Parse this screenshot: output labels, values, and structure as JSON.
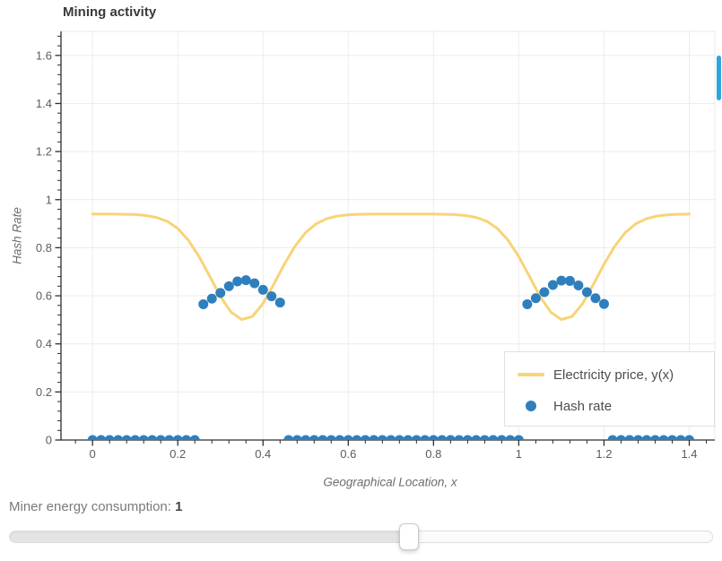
{
  "controls": {
    "slider_label": "Miner energy consumption: ",
    "slider_value": "1",
    "slider_percent": 56.7
  },
  "scrollbar": {
    "color": "#2AA7DF"
  },
  "chart_data": {
    "type": "line+scatter",
    "title": "Mining activity",
    "xlabel": "Geographical Location, x",
    "ylabel": "Hash Rate",
    "x_range": [
      -0.074,
      1.46
    ],
    "y_range": [
      0,
      1.7
    ],
    "grid": true,
    "x_ticks": {
      "values": [
        0,
        0.2,
        0.4,
        0.6,
        0.8,
        1,
        1.2,
        1.4
      ],
      "labels": [
        "0",
        "0.2",
        "0.4",
        "0.6",
        "0.8",
        "1",
        "1.2",
        "1.4"
      ],
      "minor_step": 0.04
    },
    "y_ticks": {
      "values": [
        0,
        0.2,
        0.4,
        0.6,
        0.8,
        1,
        1.2,
        1.4,
        1.6
      ],
      "labels": [
        "0",
        "0.2",
        "0.4",
        "0.6",
        "0.8",
        "1",
        "1.2",
        "1.4",
        "1.6"
      ],
      "minor_step": 0.04
    },
    "legend": {
      "position": "bottom-right",
      "entries": [
        {
          "label": "Electricity price, y(x)",
          "type": "line",
          "color": "#F8D377"
        },
        {
          "label": "Hash rate",
          "type": "circle",
          "color": "#2F7FBD"
        }
      ]
    },
    "series": [
      {
        "name": "Electricity price, y(x)",
        "type": "line",
        "color": "#F8D377",
        "width": 3,
        "x": [
          0,
          0.025,
          0.05,
          0.075,
          0.1,
          0.125,
          0.15,
          0.175,
          0.2,
          0.225,
          0.25,
          0.275,
          0.3,
          0.325,
          0.35,
          0.375,
          0.4,
          0.425,
          0.45,
          0.475,
          0.5,
          0.525,
          0.55,
          0.575,
          0.6,
          0.625,
          0.65,
          0.675,
          0.7,
          0.725,
          0.75,
          0.775,
          0.8,
          0.825,
          0.85,
          0.875,
          0.9,
          0.925,
          0.95,
          0.975,
          1.0,
          1.025,
          1.05,
          1.075,
          1.1,
          1.125,
          1.15,
          1.175,
          1.2,
          1.225,
          1.25,
          1.275,
          1.3,
          1.325,
          1.35,
          1.375,
          1.4
        ],
        "y": [
          0.94,
          0.94,
          0.94,
          0.939,
          0.938,
          0.934,
          0.926,
          0.91,
          0.88,
          0.831,
          0.763,
          0.681,
          0.597,
          0.532,
          0.501,
          0.514,
          0.568,
          0.647,
          0.731,
          0.806,
          0.863,
          0.9,
          0.921,
          0.932,
          0.937,
          0.939,
          0.94,
          0.94,
          0.94,
          0.94,
          0.94,
          0.94,
          0.94,
          0.939,
          0.938,
          0.934,
          0.926,
          0.91,
          0.88,
          0.831,
          0.763,
          0.681,
          0.597,
          0.532,
          0.501,
          0.514,
          0.568,
          0.647,
          0.731,
          0.806,
          0.863,
          0.9,
          0.921,
          0.932,
          0.937,
          0.939,
          0.94
        ]
      },
      {
        "name": "Hash rate",
        "type": "scatter",
        "color": "#2F7FBD",
        "size": 11,
        "x": [
          0,
          0.02,
          0.04,
          0.06,
          0.08,
          0.1,
          0.12,
          0.14,
          0.16,
          0.18,
          0.2,
          0.22,
          0.24,
          0.26,
          0.28,
          0.3,
          0.32,
          0.34,
          0.36,
          0.38,
          0.4,
          0.42,
          0.44,
          0.46,
          0.48,
          0.5,
          0.52,
          0.54,
          0.56,
          0.58,
          0.6,
          0.62,
          0.64,
          0.66,
          0.68,
          0.7,
          0.72,
          0.74,
          0.76,
          0.78,
          0.8,
          0.82,
          0.84,
          0.86,
          0.88,
          0.9,
          0.92,
          0.94,
          0.96,
          0.98,
          1.0,
          1.02,
          1.04,
          1.06,
          1.08,
          1.1,
          1.12,
          1.14,
          1.16,
          1.18,
          1.2,
          1.22,
          1.24,
          1.26,
          1.28,
          1.3,
          1.32,
          1.34,
          1.36,
          1.38,
          1.4
        ],
        "y": [
          0,
          0,
          0,
          0,
          0,
          0,
          0,
          0,
          0,
          0,
          0,
          0,
          0,
          0.565,
          0.588,
          0.612,
          0.64,
          0.66,
          0.665,
          0.652,
          0.625,
          0.598,
          0.572,
          0,
          0,
          0,
          0,
          0,
          0,
          0,
          0,
          0,
          0,
          0,
          0,
          0,
          0,
          0,
          0,
          0,
          0,
          0,
          0,
          0,
          0,
          0,
          0,
          0,
          0,
          0,
          0,
          0.565,
          0.59,
          0.615,
          0.645,
          0.663,
          0.662,
          0.643,
          0.615,
          0.59,
          0.566,
          0,
          0,
          0,
          0,
          0,
          0,
          0,
          0,
          0,
          0
        ]
      }
    ]
  }
}
